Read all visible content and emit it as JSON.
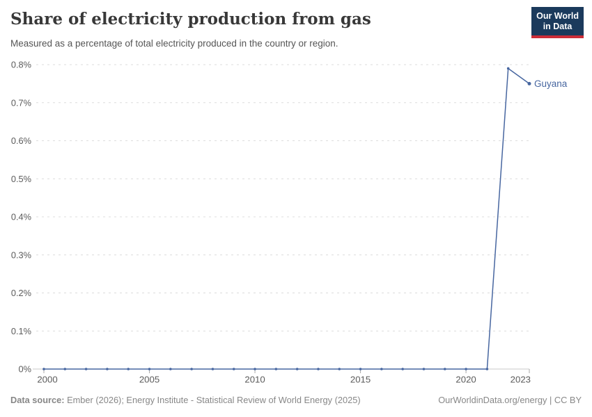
{
  "header": {
    "title": "Share of electricity production from gas",
    "subtitle": "Measured as a percentage of total electricity produced in the country or region.",
    "logo": {
      "line1": "Our World",
      "line2": "in Data"
    }
  },
  "footer": {
    "source_label": "Data source:",
    "source_text": " Ember (2026); Energy Institute - Statistical Review of World Energy (2025)",
    "rights": "OurWorldinData.org/energy | CC BY"
  },
  "colors": {
    "line": "#4766a0",
    "gridline": "#dcdcdc",
    "axis": "#c9c9c9",
    "tick": "#a8a8a8",
    "tick_label": "#5b5b5b",
    "logo_bg": "#1b3a5c",
    "logo_stripe": "#cc2d38"
  },
  "chart_data": {
    "type": "line",
    "title": "Share of electricity production from gas",
    "subtitle": "Measured as a percentage of total electricity produced in the country or region.",
    "xlabel": "",
    "ylabel": "",
    "xlim": [
      2000,
      2023
    ],
    "ylim": [
      0,
      0.8
    ],
    "grid": "horizontal-dashed",
    "legend": "end-of-line-label",
    "xticks": [
      2000,
      2005,
      2010,
      2015,
      2020,
      2023
    ],
    "yticks": [
      {
        "value": 0,
        "label": "0%"
      },
      {
        "value": 0.1,
        "label": "0.1%"
      },
      {
        "value": 0.2,
        "label": "0.2%"
      },
      {
        "value": 0.3,
        "label": "0.3%"
      },
      {
        "value": 0.4,
        "label": "0.4%"
      },
      {
        "value": 0.5,
        "label": "0.5%"
      },
      {
        "value": 0.6,
        "label": "0.6%"
      },
      {
        "value": 0.7,
        "label": "0.7%"
      },
      {
        "value": 0.8,
        "label": "0.8%"
      }
    ],
    "series": [
      {
        "name": "Guyana",
        "unit": "%",
        "x": [
          2000,
          2001,
          2002,
          2003,
          2004,
          2005,
          2006,
          2007,
          2008,
          2009,
          2010,
          2011,
          2012,
          2013,
          2014,
          2015,
          2016,
          2017,
          2018,
          2019,
          2020,
          2021,
          2022,
          2023
        ],
        "values": [
          0,
          0,
          0,
          0,
          0,
          0,
          0,
          0,
          0,
          0,
          0,
          0,
          0,
          0,
          0,
          0,
          0,
          0,
          0,
          0,
          0,
          0,
          0.79,
          0.75
        ]
      }
    ]
  }
}
